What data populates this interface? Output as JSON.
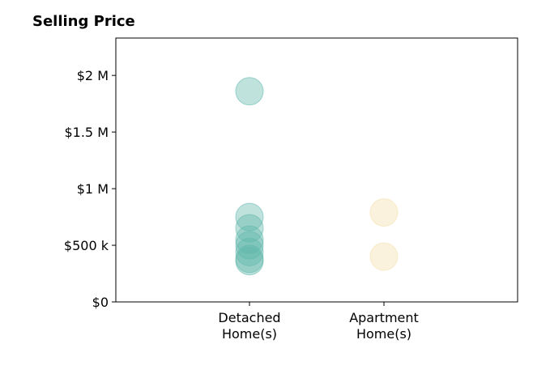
{
  "chart_data": {
    "type": "scatter",
    "title": "Selling Price",
    "xlabel": "",
    "ylabel": "",
    "categories": [
      "Detached\nHome(s)",
      "Apartment\nHome(s)"
    ],
    "ylim": [
      0,
      2330000
    ],
    "y_ticks": [
      {
        "value": 0,
        "label": "$0"
      },
      {
        "value": 500000,
        "label": "$500 k"
      },
      {
        "value": 1000000,
        "label": "$1 M"
      },
      {
        "value": 1500000,
        "label": "$1.5 M"
      },
      {
        "value": 2000000,
        "label": "$2 M"
      }
    ],
    "grid": false,
    "series": [
      {
        "category_index": 0,
        "color": "#5fb7aa",
        "values": [
          1860000,
          750000,
          650000,
          550000,
          500000,
          440000,
          380000,
          360000
        ]
      },
      {
        "category_index": 1,
        "color": "#f3dfa8",
        "values": [
          790000,
          400000
        ]
      }
    ]
  }
}
